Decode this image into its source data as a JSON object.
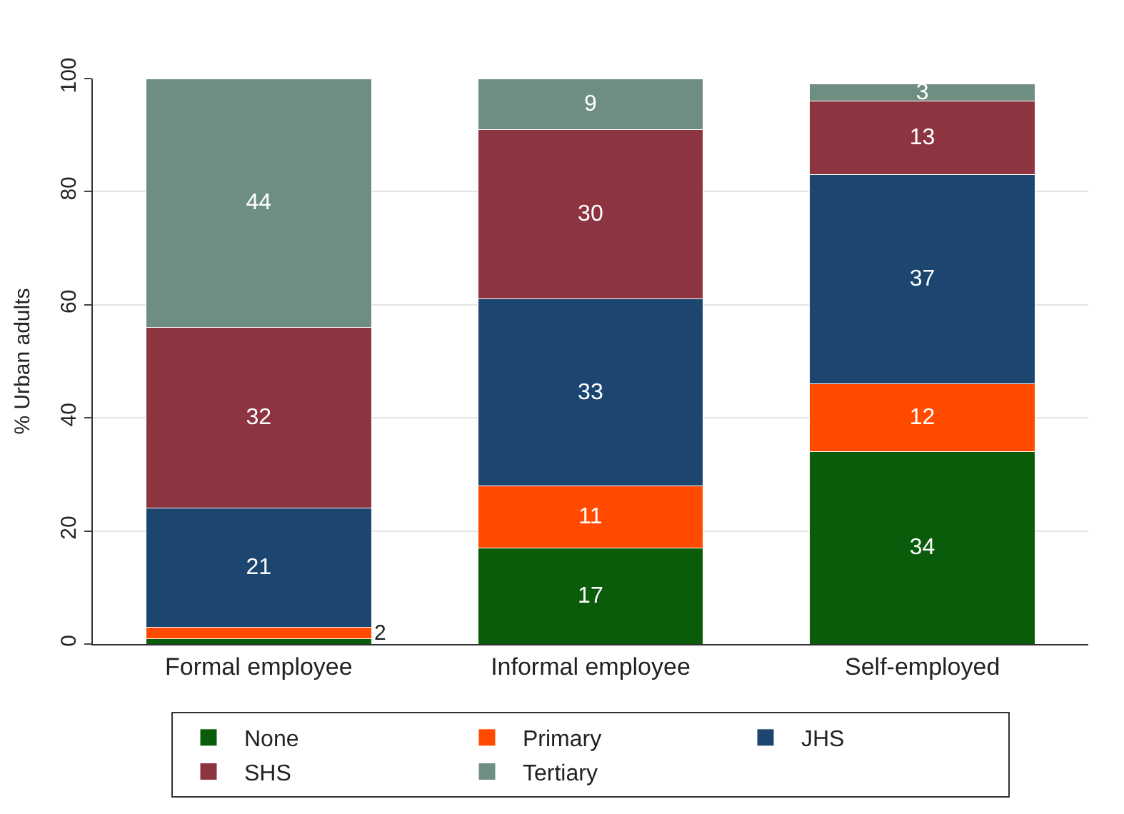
{
  "chart_data": {
    "type": "bar",
    "stacked": true,
    "ylabel": "% Urban adults",
    "categories": [
      "Formal employee",
      "Informal employee",
      "Self-employed"
    ],
    "series": [
      {
        "name": "None",
        "color": "#0a5c0a",
        "values": [
          1,
          17,
          34
        ],
        "value_labels": [
          null,
          "17",
          "34"
        ]
      },
      {
        "name": "Primary",
        "color": "#ff4a00",
        "values": [
          2,
          11,
          12
        ],
        "value_labels": [
          "2",
          "11",
          "12"
        ]
      },
      {
        "name": "JHS",
        "color": "#1c4670",
        "values": [
          21,
          33,
          37
        ],
        "value_labels": [
          "21",
          "33",
          "37"
        ]
      },
      {
        "name": "SHS",
        "color": "#8c3440",
        "values": [
          32,
          30,
          13
        ],
        "value_labels": [
          "32",
          "30",
          "13"
        ]
      },
      {
        "name": "Tertiary",
        "color": "#6e8e82",
        "values": [
          44,
          9,
          3
        ],
        "value_labels": [
          "44",
          "9",
          "3"
        ]
      }
    ],
    "ylim": [
      0,
      100
    ],
    "yticks": [
      0,
      20,
      40,
      60,
      80,
      100
    ],
    "grid": "y",
    "legend": "bottom"
  }
}
